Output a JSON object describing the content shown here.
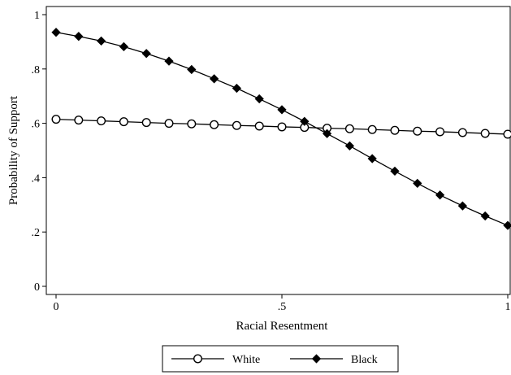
{
  "chart_data": {
    "type": "line",
    "xlabel": "Racial Resentment",
    "ylabel": "Probability of Support",
    "xlim": [
      0,
      1
    ],
    "ylim": [
      0,
      1
    ],
    "x_ticks": [
      0,
      0.5,
      1
    ],
    "x_tick_labels": [
      "0",
      ".5",
      "1"
    ],
    "y_ticks": [
      0,
      0.2,
      0.4,
      0.6,
      0.8,
      1
    ],
    "y_tick_labels": [
      "0",
      ".2",
      ".4",
      ".6",
      ".8",
      "1"
    ],
    "grid": false,
    "legend_position": "bottom",
    "x": [
      0,
      0.05,
      0.1,
      0.15,
      0.2,
      0.25,
      0.3,
      0.35,
      0.4,
      0.45,
      0.5,
      0.55,
      0.6,
      0.65,
      0.7,
      0.75,
      0.8,
      0.85,
      0.9,
      0.95,
      1
    ],
    "series": [
      {
        "name": "White",
        "marker": "hollow-circle",
        "color": "#000000",
        "values": [
          0.615,
          0.612,
          0.609,
          0.606,
          0.603,
          0.6,
          0.598,
          0.595,
          0.592,
          0.59,
          0.587,
          0.585,
          0.582,
          0.58,
          0.577,
          0.574,
          0.571,
          0.569,
          0.566,
          0.563,
          0.56
        ]
      },
      {
        "name": "Black",
        "marker": "filled-diamond",
        "color": "#000000",
        "values": [
          0.935,
          0.92,
          0.903,
          0.882,
          0.857,
          0.829,
          0.798,
          0.764,
          0.729,
          0.69,
          0.65,
          0.607,
          0.562,
          0.517,
          0.47,
          0.424,
          0.379,
          0.336,
          0.296,
          0.259,
          0.224
        ]
      }
    ]
  }
}
